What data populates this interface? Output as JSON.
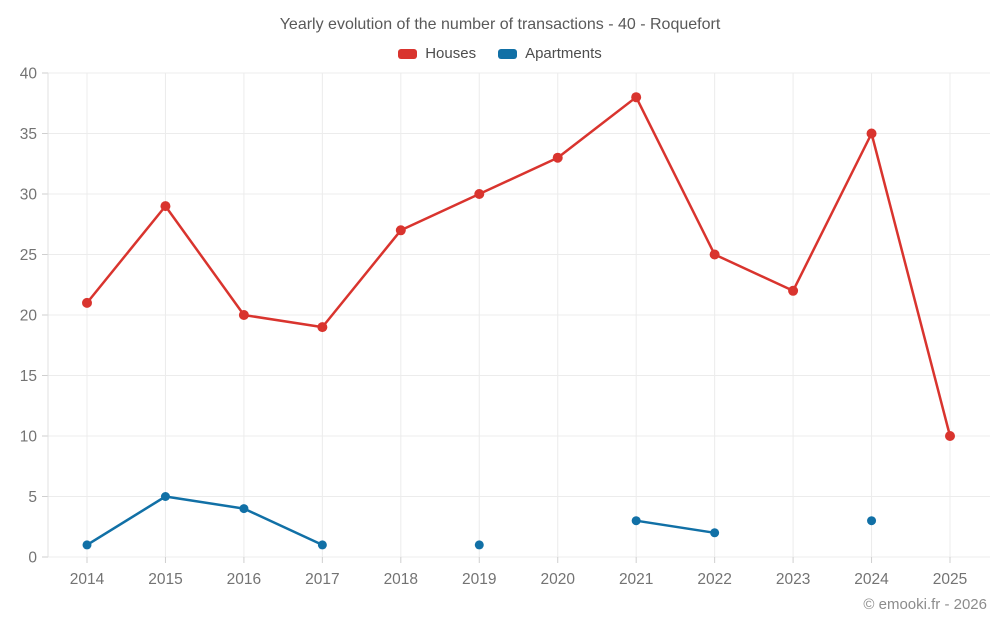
{
  "header": {
    "title": "Yearly evolution of the number of transactions - 40 - Roquefort"
  },
  "chart_data": {
    "type": "line",
    "title": "Yearly evolution of the number of transactions - 40 - Roquefort",
    "categories": [
      "2014",
      "2015",
      "2016",
      "2017",
      "2018",
      "2019",
      "2020",
      "2021",
      "2022",
      "2023",
      "2024",
      "2025"
    ],
    "series": [
      {
        "name": "Houses",
        "color": "#d9342e",
        "values": [
          21,
          29,
          20,
          19,
          27,
          30,
          33,
          38,
          25,
          22,
          35,
          10
        ]
      },
      {
        "name": "Apartments",
        "color": "#1170a6",
        "values": [
          1,
          5,
          4,
          1,
          null,
          1,
          null,
          3,
          2,
          null,
          3,
          null
        ]
      }
    ],
    "xlabel": "",
    "ylabel": "",
    "ylim": [
      0,
      40
    ],
    "ytick_step": 5,
    "grid": true,
    "legend_position": "top",
    "grid_color": "#ececec",
    "axis_line_color": "#e0e0e0",
    "tick_color": "#cfcfcf",
    "axis_label_color": "#737373"
  },
  "footer": {
    "copyright": "© emooki.fr - 2026"
  }
}
